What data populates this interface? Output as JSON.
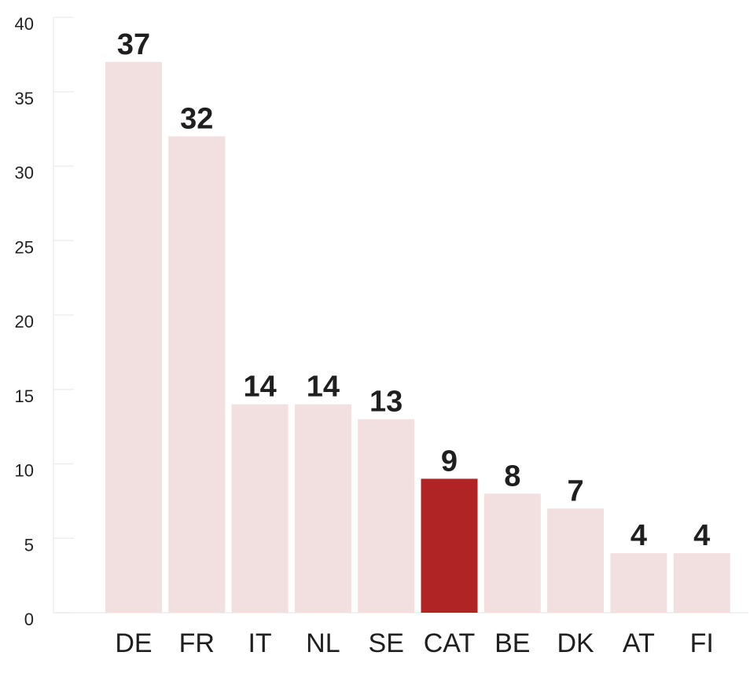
{
  "chart_data": {
    "type": "bar",
    "title": "",
    "xlabel": "",
    "ylabel": "",
    "categories": [
      "DE",
      "FR",
      "IT",
      "NL",
      "SE",
      "CAT",
      "BE",
      "DK",
      "AT",
      "FI"
    ],
    "values": [
      37,
      32,
      14,
      14,
      13,
      9,
      8,
      7,
      4,
      4
    ],
    "highlight_category": "CAT",
    "ylim": [
      0,
      40
    ],
    "yticks": [
      0,
      5,
      10,
      15,
      20,
      25,
      30,
      35,
      40
    ],
    "grid": false,
    "legend": "none",
    "data_labels": true,
    "colors": {
      "bar": "#f2dfdf",
      "highlight": "#b02426",
      "axis": "#eeeeee",
      "text": "#1f1f1f"
    }
  }
}
